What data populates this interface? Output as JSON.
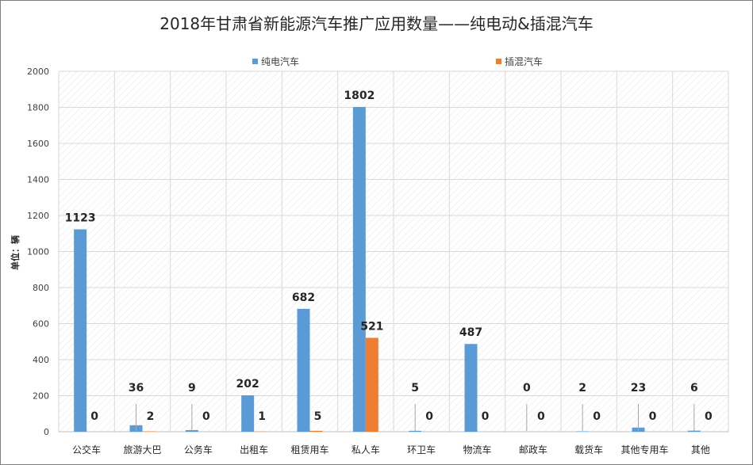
{
  "chart_data": {
    "type": "bar",
    "title": "2018年甘肃省新能源汽车推广应用数量——纯电动&插混汽车",
    "ylabel": "单位：辆",
    "ylim": [
      0,
      2000
    ],
    "yticks": [
      0,
      200,
      400,
      600,
      800,
      1000,
      1200,
      1400,
      1600,
      1800,
      2000
    ],
    "grid": true,
    "legend_position": "top",
    "categories": [
      "公交车",
      "旅游大巴",
      "公务车",
      "出租车",
      "租赁用车",
      "私人车",
      "环卫车",
      "物流车",
      "邮政车",
      "载货车",
      "其他专用车",
      "其他"
    ],
    "series": [
      {
        "name": "纯电汽车",
        "color": "#5b9bd5",
        "values": [
          1123,
          36,
          9,
          202,
          682,
          1802,
          5,
          487,
          0,
          2,
          23,
          6
        ]
      },
      {
        "name": "插混汽车",
        "color": "#ed7d31",
        "values": [
          0,
          2,
          0,
          1,
          5,
          521,
          0,
          0,
          0,
          0,
          0,
          0
        ]
      }
    ]
  }
}
